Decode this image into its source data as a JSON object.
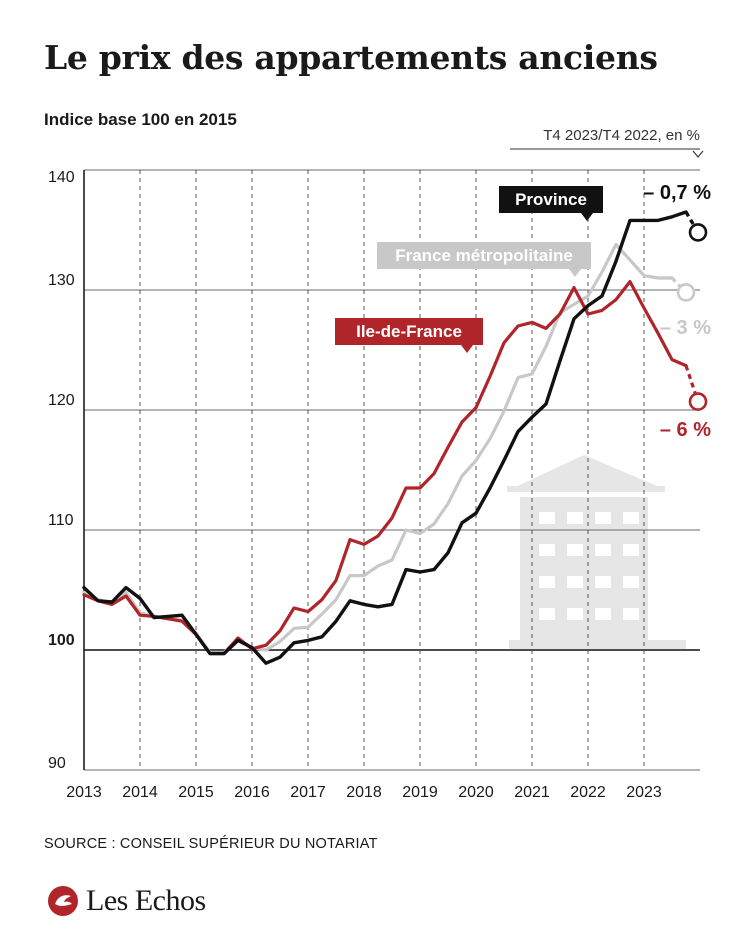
{
  "header": {
    "title": "Le prix des appartements anciens",
    "subtitle": "Indice base 100 en 2015"
  },
  "footer": {
    "source": "SOURCE : CONSEIL SUPÉRIEUR DU NOTARIAT",
    "brand": "Les Echos"
  },
  "colors": {
    "province": "#111111",
    "france": "#c8c8c8",
    "idf": "#b0252a",
    "grid": "#555555",
    "building": "#e6e6e6"
  },
  "icons": [
    "les-echos-logo-icon",
    "building-icon"
  ],
  "chart_data": {
    "type": "line",
    "xlim": [
      2013,
      2024
    ],
    "ylim": [
      90,
      140
    ],
    "yticks": [
      90,
      100,
      110,
      120,
      130,
      140
    ],
    "xticks": [
      2013,
      2014,
      2015,
      2016,
      2017,
      2018,
      2019,
      2020,
      2021,
      2022,
      2023
    ],
    "right_header": "T4 2023/T4 2022, en %",
    "series": [
      {
        "key": "france",
        "name": "France métropolitaine",
        "change": "– 3 %",
        "x": [
          2013,
          2013.25,
          2013.5,
          2013.75,
          2014,
          2014.25,
          2014.5,
          2014.75,
          2015,
          2015.25,
          2015.5,
          2015.75,
          2016,
          2016.25,
          2016.5,
          2016.75,
          2017,
          2017.25,
          2017.5,
          2017.75,
          2018,
          2018.25,
          2018.5,
          2018.75,
          2019,
          2019.25,
          2019.5,
          2019.75,
          2020,
          2020.25,
          2020.5,
          2020.75,
          2021,
          2021.25,
          2021.5,
          2021.75,
          2022,
          2022.25,
          2022.5,
          2022.75,
          2023,
          2023.25,
          2023.5,
          2023.75
        ],
        "values": [
          104.8,
          104.2,
          103.9,
          104.8,
          103.1,
          102.8,
          102.7,
          102.5,
          101.4,
          99.8,
          99.8,
          100.9,
          100.2,
          100.0,
          100.7,
          101.8,
          101.9,
          103.0,
          104.2,
          106.2,
          106.2,
          107.0,
          107.5,
          110.0,
          109.7,
          110.5,
          112.2,
          114.5,
          115.8,
          117.6,
          119.9,
          122.7,
          123.0,
          125.3,
          128.1,
          128.8,
          129.5,
          131.5,
          133.8,
          132.5,
          131.2,
          131.0,
          131.0,
          129.8
        ],
        "dashed_from_index": 42
      },
      {
        "key": "idf",
        "name": "Ile-de-France",
        "change": "– 6 %",
        "x": [
          2013,
          2013.25,
          2013.5,
          2013.75,
          2014,
          2014.25,
          2014.5,
          2014.75,
          2015,
          2015.25,
          2015.5,
          2015.75,
          2016,
          2016.25,
          2016.5,
          2016.75,
          2017,
          2017.25,
          2017.5,
          2017.75,
          2018,
          2018.25,
          2018.5,
          2018.75,
          2019,
          2019.25,
          2019.5,
          2019.75,
          2020,
          2020.25,
          2020.5,
          2020.75,
          2021,
          2021.25,
          2021.5,
          2021.75,
          2022,
          2022.25,
          2022.5,
          2022.75,
          2023,
          2023.25,
          2023.5,
          2023.75
        ],
        "values": [
          104.6,
          104.1,
          103.8,
          104.5,
          102.9,
          102.8,
          102.6,
          102.4,
          101.3,
          99.7,
          99.7,
          101.0,
          100.1,
          100.4,
          101.6,
          103.5,
          103.2,
          104.2,
          105.8,
          109.2,
          108.8,
          109.5,
          111.0,
          113.5,
          113.5,
          114.7,
          116.9,
          119.0,
          120.2,
          122.8,
          125.6,
          127.0,
          127.3,
          126.8,
          128.0,
          130.2,
          128.0,
          128.3,
          129.2,
          130.7,
          128.5,
          126.4,
          124.2,
          123.7
        ],
        "dashed_end": 120.7
      },
      {
        "key": "province",
        "name": "Province",
        "change": "– 0,7 %",
        "x": [
          2013,
          2013.25,
          2013.5,
          2013.75,
          2014,
          2014.25,
          2014.5,
          2014.75,
          2015,
          2015.25,
          2015.5,
          2015.75,
          2016,
          2016.25,
          2016.5,
          2016.75,
          2017,
          2017.25,
          2017.5,
          2017.75,
          2018,
          2018.25,
          2018.5,
          2018.75,
          2019,
          2019.25,
          2019.5,
          2019.75,
          2020,
          2020.25,
          2020.5,
          2020.75,
          2021,
          2021.25,
          2021.5,
          2021.75,
          2022,
          2022.25,
          2022.5,
          2022.75,
          2023,
          2023.25,
          2023.5,
          2023.75
        ],
        "values": [
          105.2,
          104.1,
          104.0,
          105.2,
          104.3,
          102.7,
          102.8,
          102.9,
          101.3,
          99.7,
          99.7,
          100.8,
          100.2,
          98.9,
          99.4,
          100.6,
          100.8,
          101.1,
          102.4,
          104.1,
          103.8,
          103.6,
          103.8,
          106.7,
          106.5,
          106.7,
          108.1,
          110.6,
          111.4,
          113.5,
          115.8,
          118.2,
          119.4,
          120.5,
          124.1,
          127.6,
          128.7,
          129.5,
          132.4,
          135.8,
          135.8,
          135.8,
          136.1,
          136.5
        ],
        "dashed_end": 134.8
      }
    ]
  }
}
